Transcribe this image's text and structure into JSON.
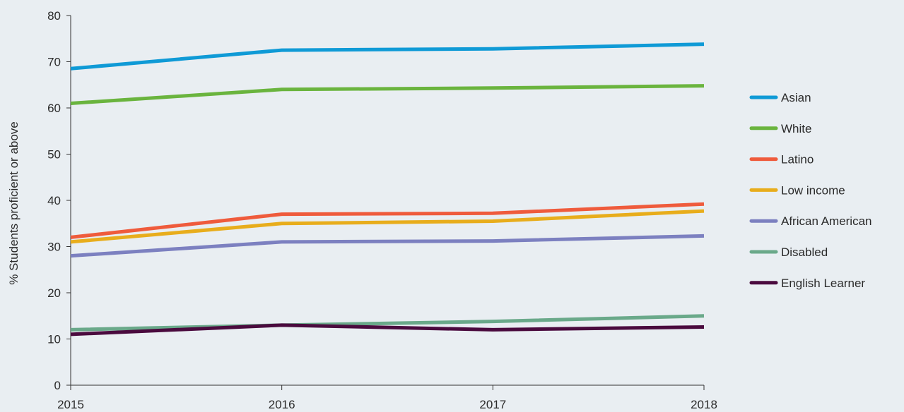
{
  "chart_data": {
    "type": "line",
    "title": "",
    "xlabel": "",
    "ylabel": "% Students proficient or above",
    "x": [
      "2015",
      "2016",
      "2017",
      "2018"
    ],
    "ylim": [
      0,
      80
    ],
    "yticks": [
      "0",
      "10",
      "20",
      "30",
      "40",
      "50",
      "60",
      "70",
      "80"
    ],
    "grid": false,
    "legend_position": "right",
    "series": [
      {
        "name": "Asian",
        "color": "#0f9ad6",
        "values": [
          68.5,
          72.5,
          72.8,
          73.8
        ]
      },
      {
        "name": "White",
        "color": "#6ab43e",
        "values": [
          61,
          64,
          64.3,
          64.8
        ]
      },
      {
        "name": "Latino",
        "color": "#ef5b3c",
        "values": [
          32,
          37,
          37.2,
          39.2
        ]
      },
      {
        "name": "Low income",
        "color": "#e8ad1c",
        "values": [
          31,
          35,
          35.5,
          37.7
        ]
      },
      {
        "name": "African American",
        "color": "#7c80c0",
        "values": [
          28,
          31,
          31.2,
          32.3
        ]
      },
      {
        "name": "Disabled",
        "color": "#6aa98a",
        "values": [
          12,
          13,
          13.8,
          15
        ]
      },
      {
        "name": "English Learner",
        "color": "#4a0a3e",
        "values": [
          11,
          13,
          12,
          12.6
        ]
      }
    ]
  }
}
